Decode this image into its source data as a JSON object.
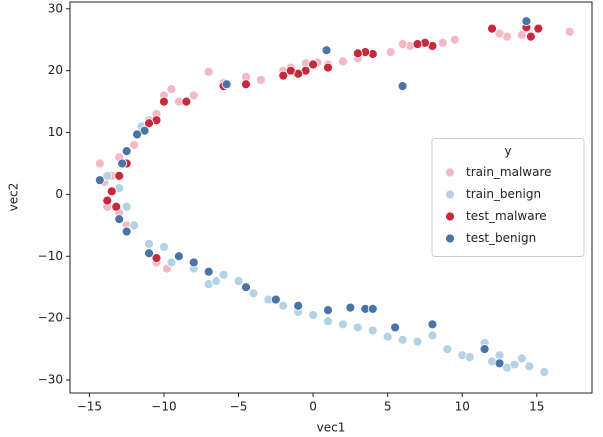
{
  "chart_data": {
    "type": "scatter",
    "x_label": "vec1",
    "y_label": "vec2",
    "legend_title": "y",
    "legend_position": "center right",
    "xlim": [
      -16.3,
      18.7
    ],
    "ylim": [
      -32.1,
      31.1
    ],
    "xticks": [
      {
        "value": -15,
        "label": "−15"
      },
      {
        "value": -10,
        "label": "−10"
      },
      {
        "value": -5,
        "label": "−5"
      },
      0,
      5,
      10,
      15
    ],
    "yticks": [
      {
        "value": -30,
        "label": "−30"
      },
      {
        "value": -20,
        "label": "−20"
      },
      {
        "value": -10,
        "label": "−10"
      },
      0,
      10,
      20,
      30
    ],
    "series": [
      {
        "name": "train_malware",
        "color": "#f3b8c4",
        "x": [
          17.2,
          14,
          13,
          12.5,
          9.5,
          8.7,
          7.5,
          6.5,
          6,
          5.2,
          3,
          2,
          1,
          0.3,
          -0.5,
          -1.5,
          -2,
          -3.5,
          -4.5,
          -6,
          -7,
          -8,
          -9,
          -9.5,
          -10,
          -10.5,
          -11,
          -12,
          -13,
          -13.5,
          -14,
          -14.3,
          -13.8,
          -13,
          -12.5,
          -10.5,
          -9.8
        ],
        "values": [
          26.3,
          25.8,
          25.5,
          26,
          25,
          24.5,
          24.5,
          24,
          24.3,
          23,
          22,
          21.5,
          21,
          21.3,
          21.2,
          20.5,
          20,
          18.5,
          19,
          18,
          19.8,
          16,
          15,
          17,
          16,
          13,
          12,
          8,
          6,
          3,
          2,
          5,
          -2,
          -3,
          -5,
          -11,
          -12
        ]
      },
      {
        "name": "train_benign",
        "color": "#b3d3e5",
        "x": [
          -13.8,
          -13,
          -12.5,
          -12,
          -11,
          -10,
          -9.5,
          -8,
          -7,
          -6,
          -5,
          -4,
          -3,
          -2,
          -1,
          0,
          1,
          2,
          3,
          4,
          5,
          6,
          7,
          8,
          9,
          10,
          10.5,
          11.5,
          12,
          12.5,
          13,
          13.5,
          14,
          14.5,
          15.5,
          -12.5,
          -11.5,
          -6.5
        ],
        "values": [
          3,
          1,
          -2,
          -5,
          -8,
          -8.5,
          -11,
          -12,
          -14.5,
          -13,
          -14,
          -16,
          -17,
          -18,
          -19,
          -19.5,
          -20.5,
          -21,
          -21.5,
          -22,
          -23,
          -23.5,
          -23.8,
          -22.8,
          -25,
          -26,
          -26.3,
          -24,
          -27,
          -26,
          -28,
          -27.5,
          -26.5,
          -27.8,
          -28.7,
          7,
          11,
          -14
        ]
      },
      {
        "name": "test_malware",
        "color": "#c8283c",
        "x": [
          15.1,
          14.6,
          14.3,
          12,
          8,
          7.5,
          7,
          4,
          3.5,
          3,
          1,
          0,
          -0.5,
          -1,
          -1.5,
          -2,
          -4.5,
          -6,
          -8.5,
          -10,
          -10.5,
          -11,
          -12.5,
          -13,
          -13.5,
          -13.8,
          -13.2,
          -12.5,
          -10.5
        ],
        "values": [
          26.8,
          25.5,
          27,
          26.8,
          24,
          24.5,
          24.3,
          22.7,
          23,
          22.8,
          20.5,
          21,
          20,
          19.5,
          20,
          19.2,
          17.8,
          17.5,
          15,
          15,
          12,
          11.5,
          5,
          3,
          0.5,
          -1,
          -2,
          -6,
          -10.3
        ]
      },
      {
        "name": "test_benign",
        "color": "#4a74a8",
        "x": [
          14.3,
          6,
          0.9,
          -5.8,
          -11.3,
          -11.8,
          -12.5,
          -12.8,
          -14.3,
          -13,
          -12.5,
          -11,
          -9,
          -8,
          -7,
          -4.5,
          -2.5,
          -1,
          1,
          2.5,
          3.5,
          4,
          5.5,
          8,
          11.5,
          12.5
        ],
        "values": [
          28,
          17.5,
          23.3,
          17.8,
          10.3,
          9.7,
          7,
          5,
          2.3,
          -4,
          -6,
          -9.5,
          -10,
          -11,
          -12.5,
          -15,
          -17,
          -18,
          -18.7,
          -18.3,
          -18.5,
          -18.5,
          -21.5,
          -21,
          -25,
          -27.3
        ]
      }
    ]
  }
}
